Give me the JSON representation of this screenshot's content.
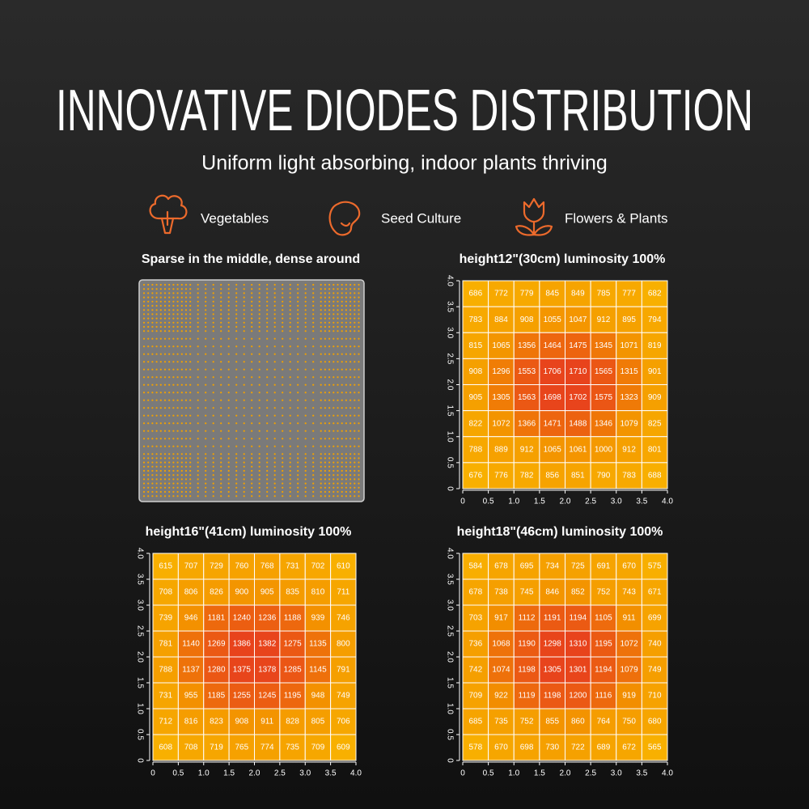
{
  "header": {
    "title": "INNOVATIVE DIODES DISTRIBUTION",
    "subtitle": "Uniform light absorbing, indoor plants thriving"
  },
  "features": [
    "Vegetables",
    "Seed Culture",
    "Flowers & Plants"
  ],
  "diode_panel": {
    "title": "Sparse in the middle, dense around"
  },
  "chart_data": [
    {
      "type": "heatmap",
      "title": "height12\"(30cm)  luminosity 100%",
      "xlim": [
        0,
        4
      ],
      "ylim": [
        0,
        4
      ],
      "xticks": [
        0,
        0.5,
        {
          "value": 1,
          "label": "1.0"
        },
        1.5,
        {
          "value": 2,
          "label": "2.0"
        },
        2.5,
        {
          "value": 3,
          "label": "3.0"
        },
        3.5,
        {
          "value": 4,
          "label": "4.0"
        }
      ],
      "yticks": [
        0,
        0.5,
        {
          "value": 1,
          "label": "1.0"
        },
        1.5,
        {
          "value": 2,
          "label": "2.0"
        },
        2.5,
        {
          "value": 3,
          "label": "3.0"
        },
        3.5,
        {
          "value": 4,
          "label": "4.0"
        }
      ],
      "colors": [
        "#f8b000",
        "#f28c00",
        "#e8431c"
      ],
      "values": [
        [
          686,
          772,
          779,
          845,
          849,
          785,
          777,
          682
        ],
        [
          783,
          884,
          908,
          1055,
          1047,
          912,
          895,
          794
        ],
        [
          815,
          1065,
          1356,
          1464,
          1475,
          1345,
          1071,
          819
        ],
        [
          908,
          1296,
          1553,
          1706,
          1710,
          1565,
          1315,
          901
        ],
        [
          905,
          1305,
          1563,
          1698,
          1702,
          1575,
          1323,
          909
        ],
        [
          822,
          1072,
          1366,
          1471,
          1488,
          1346,
          1079,
          825
        ],
        [
          788,
          889,
          912,
          1065,
          1061,
          1000,
          912,
          801
        ],
        [
          676,
          776,
          782,
          856,
          851,
          790,
          783,
          688
        ]
      ]
    },
    {
      "type": "heatmap",
      "title": "height16\"(41cm)  luminosity 100%",
      "xlim": [
        0,
        4
      ],
      "ylim": [
        0,
        4
      ],
      "xticks": [
        0,
        0.5,
        {
          "value": 1,
          "label": "1.0"
        },
        1.5,
        {
          "value": 2,
          "label": "2.0"
        },
        2.5,
        {
          "value": 3,
          "label": "3.0"
        },
        3.5,
        {
          "value": 4,
          "label": "4.0"
        }
      ],
      "yticks": [
        0,
        0.5,
        {
          "value": 1,
          "label": "1.0"
        },
        1.5,
        {
          "value": 2,
          "label": "2.0"
        },
        2.5,
        {
          "value": 3,
          "label": "3.0"
        },
        3.5,
        {
          "value": 4,
          "label": "4.0"
        }
      ],
      "colors": [
        "#f8b000",
        "#f28c00",
        "#e8431c"
      ],
      "values": [
        [
          615,
          707,
          729,
          760,
          768,
          731,
          702,
          610
        ],
        [
          708,
          806,
          826,
          900,
          905,
          835,
          810,
          711
        ],
        [
          739,
          946,
          1181,
          1240,
          1236,
          1188,
          939,
          746
        ],
        [
          781,
          1140,
          1269,
          1386,
          1382,
          1275,
          1135,
          800
        ],
        [
          788,
          1137,
          1280,
          1375,
          1378,
          1285,
          1145,
          791
        ],
        [
          731,
          955,
          1185,
          1255,
          1245,
          1195,
          948,
          749
        ],
        [
          712,
          816,
          823,
          908,
          911,
          828,
          805,
          706
        ],
        [
          608,
          708,
          719,
          765,
          774,
          735,
          709,
          609
        ]
      ]
    },
    {
      "type": "heatmap",
      "title": "height18\"(46cm)  luminosity 100%",
      "xlim": [
        0,
        4
      ],
      "ylim": [
        0,
        4
      ],
      "xticks": [
        0,
        0.5,
        {
          "value": 1,
          "label": "1.0"
        },
        1.5,
        {
          "value": 2,
          "label": "2.0"
        },
        2.5,
        {
          "value": 3,
          "label": "3.0"
        },
        3.5,
        {
          "value": 4,
          "label": "4.0"
        }
      ],
      "yticks": [
        0,
        0.5,
        {
          "value": 1,
          "label": "1.0"
        },
        1.5,
        {
          "value": 2,
          "label": "2.0"
        },
        2.5,
        {
          "value": 3,
          "label": "3.0"
        },
        3.5,
        {
          "value": 4,
          "label": "4.0"
        }
      ],
      "colors": [
        "#f8b000",
        "#f28c00",
        "#e8431c"
      ],
      "values": [
        [
          584,
          678,
          695,
          734,
          725,
          691,
          670,
          575
        ],
        [
          678,
          738,
          745,
          846,
          852,
          752,
          743,
          671
        ],
        [
          703,
          917,
          1112,
          1191,
          1194,
          1105,
          911,
          699
        ],
        [
          736,
          1068,
          1190,
          1298,
          1310,
          1195,
          1072,
          740
        ],
        [
          742,
          1074,
          1198,
          1305,
          1301,
          1194,
          1079,
          749
        ],
        [
          709,
          922,
          1119,
          1198,
          1200,
          1116,
          919,
          710
        ],
        [
          685,
          735,
          752,
          855,
          860,
          764,
          750,
          680
        ],
        [
          578,
          670,
          698,
          730,
          722,
          689,
          672,
          565
        ]
      ]
    }
  ]
}
